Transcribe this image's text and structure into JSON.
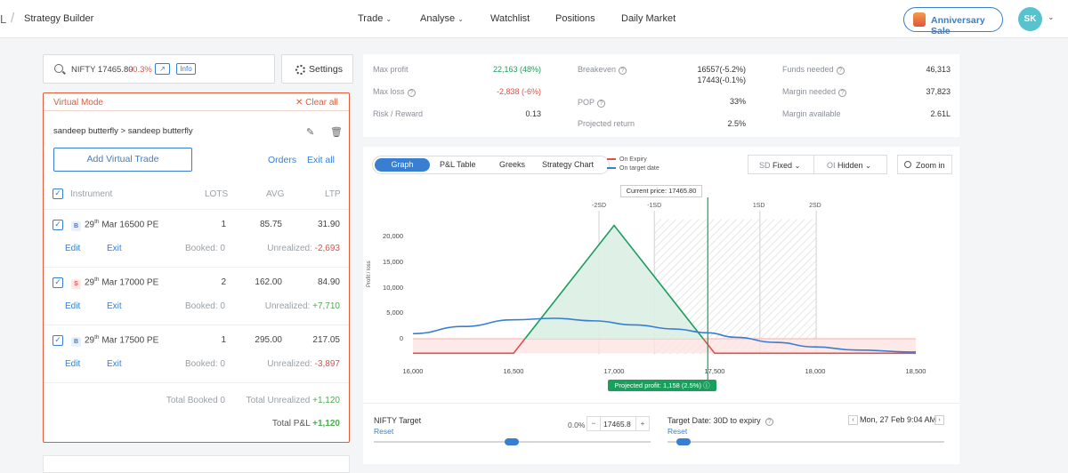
{
  "header": {
    "left_crumb": "L",
    "separator": "/",
    "title": "Strategy Builder",
    "nav": [
      {
        "label": "Trade",
        "dropdown": true
      },
      {
        "label": "Analyse",
        "dropdown": true
      },
      {
        "label": "Watchlist",
        "dropdown": false
      },
      {
        "label": "Positions",
        "dropdown": false
      },
      {
        "label": "Daily Market",
        "dropdown": false
      }
    ],
    "promo_label": "Anniversary Sale",
    "avatar_initials": "SK"
  },
  "search": {
    "symbol": "NIFTY 17465.80",
    "change": "-0.3%",
    "info_label": "Info"
  },
  "settings_label": "Settings",
  "strategy": {
    "mode_label": "Virtual Mode",
    "clear_label": "Clear all",
    "name": "sandeep butterfly > sandeep butterfly",
    "add_trade_label": "Add Virtual Trade",
    "orders_label": "Orders",
    "exit_all_label": "Exit all",
    "columns": {
      "instrument": "Instrument",
      "lots": "LOTS",
      "avg": "AVG",
      "ltp": "LTP"
    },
    "legs": [
      {
        "side": "B",
        "day": "29",
        "suffix": "th",
        "contract": "Mar 16500 PE",
        "lots": "1",
        "avg": "85.75",
        "ltp": "31.90",
        "edit": "Edit",
        "exit": "Exit",
        "booked": "Booked: 0",
        "unrealized_label": "Unrealized:",
        "unrealized": "-2,693",
        "sign": "neg"
      },
      {
        "side": "S",
        "day": "29",
        "suffix": "th",
        "contract": "Mar 17000 PE",
        "lots": "2",
        "avg": "162.00",
        "ltp": "84.90",
        "edit": "Edit",
        "exit": "Exit",
        "booked": "Booked: 0",
        "unrealized_label": "Unrealized:",
        "unrealized": "+7,710",
        "sign": "pos"
      },
      {
        "side": "B",
        "day": "29",
        "suffix": "th",
        "contract": "Mar 17500 PE",
        "lots": "1",
        "avg": "295.00",
        "ltp": "217.05",
        "edit": "Edit",
        "exit": "Exit",
        "booked": "Booked: 0",
        "unrealized_label": "Unrealized:",
        "unrealized": "-3,897",
        "sign": "neg"
      }
    ],
    "total_booked": "Total Booked 0",
    "total_unrealized_label": "Total Unrealized",
    "total_unrealized": "+1,120",
    "total_pnl_label": "Total P&L",
    "total_pnl": "+1,120"
  },
  "metrics": {
    "max_profit_label": "Max profit",
    "max_profit": "22,163 (48%)",
    "max_loss_label": "Max loss",
    "max_loss": "-2,838 (-6%)",
    "risk_reward_label": "Risk / Reward",
    "risk_reward": "0.13",
    "breakeven_label": "Breakeven",
    "breakeven_1": "16557(-5.2%)",
    "breakeven_2": "17443(-0.1%)",
    "pop_label": "POP",
    "pop": "33%",
    "projected_return_label": "Projected return",
    "projected_return": "2.5%",
    "funds_needed_label": "Funds needed",
    "funds_needed": "46,313",
    "margin_needed_label": "Margin needed",
    "margin_needed": "37,823",
    "margin_available_label": "Margin available",
    "margin_available": "2.61L"
  },
  "graph_panel": {
    "tabs": [
      "Graph",
      "P&L Table",
      "Greeks",
      "Strategy Chart"
    ],
    "active_tab": "Graph",
    "legend_expiry": "On Expiry",
    "legend_target": "On target date",
    "sd_select": "SD",
    "sd_value": "Fixed",
    "oi_select": "OI",
    "oi_value": "Hidden",
    "zoom_label": "Zoom in",
    "current_price": "Current price: 17465.80",
    "projected_profit": "Projected profit: 1,158 (2.5%)",
    "nifty_target_label": "NIFTY Target",
    "reset_label": "Reset",
    "target_pct": "0.0%",
    "target_value": "17465.8",
    "target_date_label": "Target Date:",
    "target_date_value": "30D to expiry",
    "date_value": "Mon, 27 Feb 9:04 AM"
  },
  "colors": {
    "accent": "#387ed1",
    "loss": "#df514c",
    "profit": "#4caf50",
    "mode": "#e05c3a",
    "projected": "#1a9e5c"
  },
  "chart_data": {
    "type": "line",
    "title": "",
    "xlabel": "",
    "ylabel": "Profit / loss",
    "xlim": [
      16000,
      18500
    ],
    "ylim": [
      -3000,
      22500
    ],
    "x_ticks": [
      16000,
      16500,
      17000,
      17500,
      18000,
      18500
    ],
    "x_tick_labels": [
      "16,000",
      "16,500",
      "17,000",
      "17,500",
      "18,000",
      "18,500"
    ],
    "y_ticks": [
      0,
      5000,
      10000,
      15000,
      20000
    ],
    "y_tick_labels": [
      "0",
      "5,000",
      "10,000",
      "15,000",
      "20,000"
    ],
    "sd_markers": [
      {
        "label": "-2SD",
        "x": 16925
      },
      {
        "label": "-1SD",
        "x": 17200
      },
      {
        "label": "1SD",
        "x": 17725
      },
      {
        "label": "2SD",
        "x": 18005
      }
    ],
    "current_price": 17465.8,
    "series": [
      {
        "name": "On Expiry",
        "color": "#df514c",
        "x": [
          16000,
          16500,
          17000,
          17500,
          18500
        ],
        "y": [
          -2838,
          -2838,
          22163,
          -2838,
          -2838
        ]
      },
      {
        "name": "On target date",
        "color": "#387ed1",
        "x": [
          16000,
          16250,
          16500,
          16700,
          16900,
          17100,
          17300,
          17465.8,
          17600,
          17800,
          18000,
          18200,
          18500
        ],
        "y": [
          1000,
          2400,
          3700,
          4000,
          3500,
          2700,
          1900,
          1158,
          300,
          -700,
          -1600,
          -2200,
          -2600
        ]
      }
    ]
  }
}
